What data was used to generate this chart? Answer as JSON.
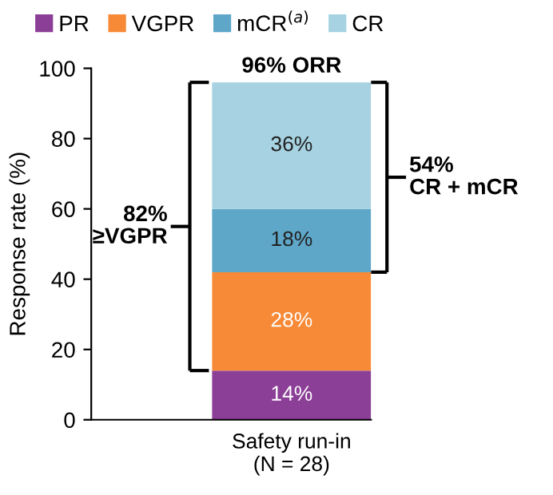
{
  "chart_data": {
    "type": "bar",
    "stacked": true,
    "ylabel": "Response rate (%)",
    "categories": [
      "Safety run-in\n(N = 28)"
    ],
    "series": [
      {
        "name": "PR",
        "color": "#8b3f96",
        "values": [
          14
        ],
        "value_labels": [
          "14%"
        ]
      },
      {
        "name": "VGPR",
        "color": "#f78a37",
        "values": [
          28
        ],
        "value_labels": [
          "28%"
        ]
      },
      {
        "name": "mCR$^{(a)}$",
        "color": "#5ea7c9",
        "values": [
          18
        ],
        "value_labels": [
          "18%"
        ]
      },
      {
        "name": "CR",
        "color": "#a6d2e1",
        "values": [
          36
        ],
        "value_labels": [
          "36%"
        ]
      }
    ],
    "ylim": [
      0,
      100
    ],
    "yticks": [
      0,
      20,
      40,
      60,
      80,
      100
    ],
    "grid": false,
    "legend": "top",
    "annotations": [
      "96% ORR",
      "82%\n≥VGPR",
      "54%\nCR + mCR"
    ]
  }
}
